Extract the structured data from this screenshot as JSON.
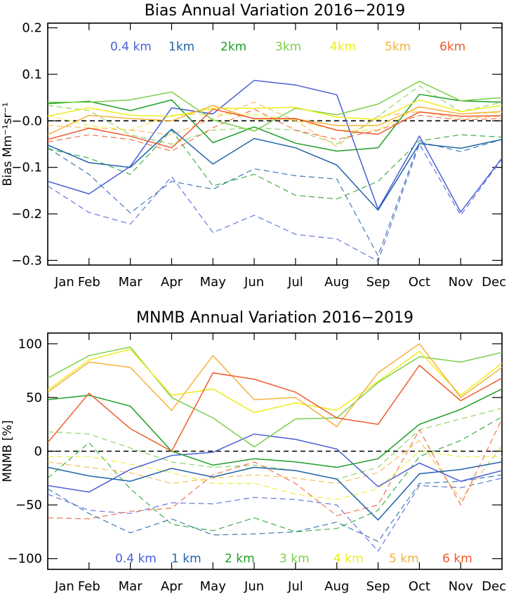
{
  "chart_data": [
    {
      "type": "line",
      "title": "Bias Annual Variation 2016−2019",
      "ylabel": "Bias  Mm⁻¹sr⁻¹",
      "x": [
        "Jan",
        "Feb",
        "Mar",
        "Apr",
        "May",
        "Jun",
        "Jul",
        "Aug",
        "Sep",
        "Oct",
        "Nov",
        "Dec"
      ],
      "ylim": [
        -0.31,
        0.21
      ],
      "yticks": [
        0.2,
        0.1,
        0.0,
        -0.1,
        -0.2,
        -0.3
      ],
      "ytick_labels": [
        "0.2",
        "0.1",
        "−0.0",
        "−0.1",
        "−0.2",
        "−0.3"
      ],
      "reference_line": 0,
      "series": [
        {
          "name": "0.4 km",
          "color": "#4a5fd6",
          "solid": [
            -0.13,
            -0.157,
            -0.098,
            0.028,
            0.015,
            0.087,
            0.077,
            0.056,
            -0.19,
            -0.033,
            -0.196,
            -0.08
          ],
          "dashed": [
            -0.14,
            -0.197,
            -0.222,
            -0.12,
            -0.24,
            -0.203,
            -0.244,
            -0.254,
            -0.302,
            -0.05,
            -0.203,
            -0.082
          ]
        },
        {
          "name": "1km",
          "color": "#1e62a8",
          "solid": [
            -0.052,
            -0.09,
            -0.1,
            -0.018,
            -0.093,
            -0.038,
            -0.058,
            -0.095,
            -0.192,
            -0.049,
            -0.059,
            -0.04
          ],
          "dashed": [
            -0.058,
            -0.115,
            -0.198,
            -0.13,
            -0.147,
            -0.103,
            -0.118,
            -0.125,
            -0.29,
            -0.045,
            -0.066,
            -0.04
          ]
        },
        {
          "name": "2km",
          "color": "#1e9e26",
          "solid": [
            0.037,
            0.042,
            0.022,
            0.045,
            -0.047,
            -0.013,
            -0.048,
            -0.065,
            -0.058,
            0.057,
            0.043,
            0.04
          ],
          "dashed": [
            -0.06,
            -0.08,
            -0.115,
            -0.02,
            -0.14,
            -0.115,
            -0.16,
            -0.168,
            -0.13,
            -0.043,
            -0.03,
            -0.035
          ]
        },
        {
          "name": "3km",
          "color": "#7ccf4a",
          "solid": [
            0.04,
            0.04,
            0.045,
            0.062,
            0.002,
            -0.022,
            0.027,
            0.013,
            0.036,
            0.085,
            0.043,
            0.05
          ],
          "dashed": [
            0.033,
            0.022,
            -0.03,
            -0.05,
            -0.02,
            -0.015,
            -0.02,
            -0.05,
            0.01,
            0.075,
            0.02,
            0.04
          ]
        },
        {
          "name": "4km",
          "color": "#eded1a",
          "solid": [
            0.01,
            0.028,
            0.012,
            0.01,
            0.027,
            0.027,
            0.029,
            0.008,
            0.003,
            0.045,
            0.02,
            0.033
          ],
          "dashed": [
            0.012,
            -0.01,
            -0.02,
            0.012,
            0.015,
            0.014,
            0.0,
            -0.02,
            -0.02,
            0.03,
            0.015,
            0.018
          ]
        },
        {
          "name": "5km",
          "color": "#f5b23c",
          "solid": [
            -0.03,
            0.012,
            0.005,
            0.0,
            0.033,
            0.004,
            0.004,
            -0.01,
            -0.01,
            0.03,
            0.015,
            0.02
          ],
          "dashed": [
            -0.01,
            -0.015,
            -0.02,
            -0.03,
            0.005,
            0.04,
            0.0,
            -0.055,
            0.01,
            0.02,
            0.005,
            0.01
          ]
        },
        {
          "name": "6km",
          "color": "#ef5a2a",
          "solid": [
            -0.04,
            -0.016,
            -0.033,
            -0.058,
            0.025,
            0.005,
            0.005,
            -0.02,
            -0.029,
            0.019,
            0.01,
            0.011
          ],
          "dashed": [
            -0.045,
            -0.03,
            -0.04,
            -0.065,
            -0.015,
            0.025,
            -0.02,
            -0.04,
            -0.02,
            0.012,
            0.002,
            0.005
          ]
        }
      ]
    },
    {
      "type": "line",
      "title": "MNMB Annual Variation 2016−2019",
      "ylabel": "MNMB  [%]",
      "x": [
        "Jan",
        "Feb",
        "Mar",
        "Apr",
        "May",
        "Jun",
        "Jul",
        "Aug",
        "Sep",
        "Oct",
        "Nov",
        "Dec"
      ],
      "ylim": [
        -110,
        110
      ],
      "yticks": [
        100,
        50,
        0,
        -50,
        -100
      ],
      "ytick_labels": [
        "100",
        "50",
        "0",
        "−50",
        "−100"
      ],
      "reference_line": 0,
      "series": [
        {
          "name": "0.4 km",
          "color": "#4a5fd6",
          "solid": [
            -32,
            -38,
            -17,
            -4,
            -1,
            16,
            11,
            2,
            -33,
            -11,
            -28,
            -18
          ],
          "dashed": [
            -40,
            -55,
            -58,
            -48,
            -49,
            -43,
            -45,
            -50,
            -93,
            -32,
            -34,
            -25
          ]
        },
        {
          "name": "1 km",
          "color": "#1e62a8",
          "solid": [
            -15,
            -23,
            -28,
            -16,
            -24,
            -15,
            -18,
            -26,
            -64,
            -21,
            -17,
            -10
          ],
          "dashed": [
            -35,
            -58,
            -76,
            -63,
            -78,
            -77,
            -75,
            -66,
            -84,
            -30,
            -28,
            -22
          ]
        },
        {
          "name": "2 km",
          "color": "#1e9e26",
          "solid": [
            48,
            52,
            42,
            0,
            -13,
            -7,
            -10,
            -15,
            -7,
            25,
            39,
            58
          ],
          "dashed": [
            -25,
            8,
            -35,
            -68,
            -74,
            -62,
            -75,
            -72,
            -55,
            -5,
            10,
            32
          ]
        },
        {
          "name": "3 km",
          "color": "#7ccf4a",
          "solid": [
            68,
            89,
            97,
            50,
            31,
            4,
            30,
            31,
            64,
            88,
            83,
            92
          ],
          "dashed": [
            18,
            16,
            3,
            -10,
            -15,
            -13,
            -18,
            -26,
            -15,
            20,
            30,
            40
          ]
        },
        {
          "name": "4 km",
          "color": "#eded1a",
          "solid": [
            57,
            85,
            95,
            52,
            58,
            36,
            45,
            38,
            65,
            93,
            52,
            82
          ],
          "dashed": [
            -5,
            -5,
            -12,
            -20,
            -30,
            -30,
            -40,
            -45,
            -35,
            0,
            -5,
            -5
          ]
        },
        {
          "name": "5 km",
          "color": "#f5b23c",
          "solid": [
            55,
            83,
            78,
            38,
            89,
            48,
            50,
            23,
            73,
            100,
            50,
            78
          ],
          "dashed": [
            -10,
            -15,
            -20,
            -30,
            -25,
            -22,
            -25,
            -30,
            -20,
            10,
            -45,
            5
          ]
        },
        {
          "name": "6 km",
          "color": "#ef5a2a",
          "solid": [
            8,
            54,
            21,
            0,
            73,
            67,
            55,
            31,
            25,
            80,
            47,
            68
          ],
          "dashed": [
            -62,
            -63,
            -56,
            -53,
            -22,
            -10,
            -30,
            -60,
            -50,
            20,
            -50,
            30
          ]
        }
      ]
    }
  ]
}
